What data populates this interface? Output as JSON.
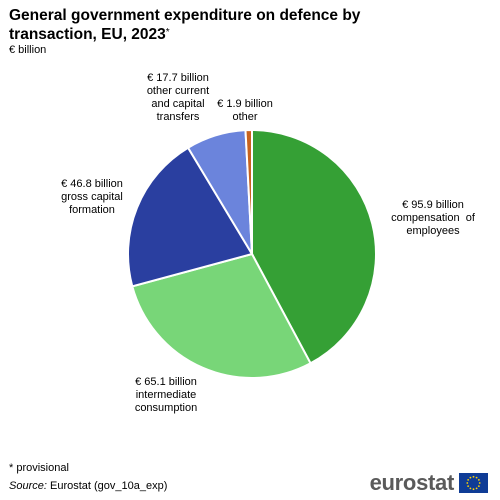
{
  "title": "General government expenditure on defence by transaction, EU, 2023",
  "title_mark": "*",
  "unit": "€ billion",
  "footnote": "* provisional",
  "source_key": "Source:",
  "source_value": "Eurostat (gov_10a_exp)",
  "logo_text": "eurostat",
  "chart_data": {
    "type": "pie",
    "unit": "€ billion",
    "start_angle_deg": 0,
    "direction": "clockwise",
    "slices": [
      {
        "value": 95.9,
        "color": "#35a035",
        "label_lines": [
          "€ 95.9 billion",
          "compensation  of",
          "employees"
        ]
      },
      {
        "value": 65.1,
        "color": "#78d678",
        "label_lines": [
          "€ 65.1 billion",
          "intermediate",
          "consumption"
        ]
      },
      {
        "value": 46.8,
        "color": "#2a3fa0",
        "label_lines": [
          "€ 46.8 billion",
          "gross capital",
          "formation"
        ]
      },
      {
        "value": 17.7,
        "color": "#6b84dc",
        "label_lines": [
          "€ 17.7 billion",
          "other current",
          "and capital",
          "transfers"
        ]
      },
      {
        "value": 1.9,
        "color": "#c8621e",
        "label_lines": [
          "€ 1.9 billion",
          "other"
        ]
      }
    ]
  }
}
